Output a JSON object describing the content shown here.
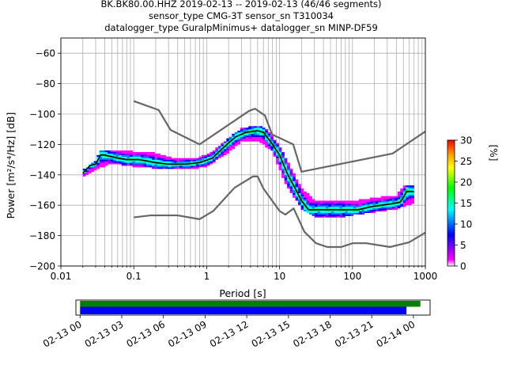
{
  "title": {
    "line1": "BK.BK80.00.HHZ   2019-02-13 -- 2019-02-13  (46/46 segments)",
    "line2": "sensor_type CMG-3T sensor_sn T310034",
    "line3": "datalogger_type GuralpMinimus+ datalogger_sn MINP-DF59"
  },
  "colorbar": {
    "label": "[%]",
    "min": 0,
    "max": 30,
    "ticks": [
      "0",
      "5",
      "10",
      "15",
      "20",
      "25",
      "30"
    ],
    "colors": [
      "#ffffff",
      "#ff00ff",
      "#0000ff",
      "#00ffff",
      "#00ff00",
      "#ffff00",
      "#ffa500",
      "#ff0000"
    ]
  },
  "chart_data": {
    "type": "heatmap",
    "title": "BK.BK80.00.HHZ   2019-02-13 -- 2019-02-13  (46/46 segments)",
    "xlabel": "Period [s]",
    "ylabel": "Power [m²/s⁴/Hz] [dB]",
    "xscale": "log",
    "xlim": [
      0.01,
      1000
    ],
    "ylim": [
      -200,
      -50
    ],
    "grid": true,
    "x_tick_labels": [
      "0.01",
      "0.1",
      "1",
      "10",
      "100",
      "1000"
    ],
    "y_tick_labels": [
      "−200",
      "−180",
      "−160",
      "−140",
      "−120",
      "−100",
      "−80",
      "−60"
    ],
    "y_ticks": [
      -200,
      -180,
      -160,
      -140,
      -120,
      -100,
      -80,
      -60
    ],
    "series": [
      {
        "name": "NHNM",
        "color": "#666666",
        "points": [
          [
            0.1,
            -91.5
          ],
          [
            0.22,
            -97.4
          ],
          [
            0.32,
            -110.5
          ],
          [
            0.8,
            -120
          ],
          [
            3.8,
            -98
          ],
          [
            4.6,
            -96.5
          ],
          [
            6.3,
            -101
          ],
          [
            7.9,
            -113.5
          ],
          [
            15.4,
            -120
          ],
          [
            20,
            -138
          ],
          [
            354.8,
            -126
          ],
          [
            1000,
            -111.5
          ]
        ]
      },
      {
        "name": "NLNM",
        "color": "#666666",
        "points": [
          [
            0.1,
            -168
          ],
          [
            0.17,
            -166.7
          ],
          [
            0.4,
            -166.7
          ],
          [
            0.8,
            -169.2
          ],
          [
            1.24,
            -163.7
          ],
          [
            2.4,
            -148.6
          ],
          [
            4.3,
            -141.1
          ],
          [
            5,
            -141.1
          ],
          [
            6,
            -149
          ],
          [
            10,
            -163.8
          ],
          [
            12,
            -166.2
          ],
          [
            15.6,
            -162.1
          ],
          [
            21.9,
            -177.5
          ],
          [
            31.6,
            -185
          ],
          [
            45,
            -187.5
          ],
          [
            70,
            -187.5
          ],
          [
            101,
            -185
          ],
          [
            154,
            -185
          ],
          [
            328,
            -187.5
          ],
          [
            600,
            -184.4
          ],
          [
            1000,
            -178
          ]
        ]
      },
      {
        "name": "mode",
        "color": "#000000",
        "points": [
          [
            0.02,
            -139
          ],
          [
            0.025,
            -134
          ],
          [
            0.03,
            -133
          ],
          [
            0.035,
            -127
          ],
          [
            0.04,
            -127
          ],
          [
            0.06,
            -129
          ],
          [
            0.08,
            -130
          ],
          [
            0.12,
            -130
          ],
          [
            0.2,
            -132
          ],
          [
            0.3,
            -133
          ],
          [
            0.5,
            -133
          ],
          [
            0.8,
            -132
          ],
          [
            1.2,
            -129
          ],
          [
            1.8,
            -121
          ],
          [
            2.5,
            -115
          ],
          [
            3.5,
            -112
          ],
          [
            5,
            -111
          ],
          [
            6,
            -112
          ],
          [
            8,
            -120
          ],
          [
            10,
            -127
          ],
          [
            13,
            -140
          ],
          [
            16,
            -148
          ],
          [
            20,
            -157
          ],
          [
            25,
            -163
          ],
          [
            30,
            -163
          ],
          [
            50,
            -163
          ],
          [
            80,
            -163
          ],
          [
            120,
            -163
          ],
          [
            180,
            -161
          ],
          [
            250,
            -160
          ],
          [
            350,
            -159
          ],
          [
            450,
            -158
          ],
          [
            500,
            -155
          ],
          [
            550,
            -151
          ],
          [
            700,
            -151
          ]
        ]
      }
    ],
    "bands": [
      {
        "name": "lower-spread",
        "points": [
          [
            0.02,
            -141
          ],
          [
            0.03,
            -136
          ],
          [
            0.05,
            -132
          ],
          [
            0.1,
            -134
          ],
          [
            0.3,
            -136
          ],
          [
            0.6,
            -136
          ],
          [
            1,
            -134
          ],
          [
            2,
            -125
          ],
          [
            3,
            -118
          ],
          [
            5,
            -117
          ],
          [
            8,
            -124
          ],
          [
            12,
            -145
          ],
          [
            20,
            -162
          ],
          [
            30,
            -167
          ],
          [
            60,
            -168
          ],
          [
            100,
            -166
          ],
          [
            200,
            -164
          ],
          [
            400,
            -162
          ],
          [
            550,
            -160
          ],
          [
            700,
            -158
          ]
        ]
      },
      {
        "name": "upper-spread",
        "points": [
          [
            0.02,
            -137
          ],
          [
            0.03,
            -131
          ],
          [
            0.035,
            -124
          ],
          [
            0.06,
            -124
          ],
          [
            0.1,
            -125
          ],
          [
            0.2,
            -126
          ],
          [
            0.4,
            -130
          ],
          [
            0.8,
            -129
          ],
          [
            1.2,
            -125
          ],
          [
            2,
            -116
          ],
          [
            3,
            -110
          ],
          [
            5,
            -108
          ],
          [
            6,
            -109
          ],
          [
            8,
            -115
          ],
          [
            11,
            -125
          ],
          [
            15,
            -138
          ],
          [
            20,
            -149
          ],
          [
            30,
            -157
          ],
          [
            60,
            -157
          ],
          [
            120,
            -157
          ],
          [
            250,
            -155
          ],
          [
            400,
            -154
          ],
          [
            500,
            -148
          ],
          [
            700,
            -147
          ]
        ]
      }
    ],
    "timeline": {
      "tick_labels": [
        "02-13 00",
        "02-13 03",
        "02-13 06",
        "02-13 09",
        "02-13 12",
        "02-13 15",
        "02-13 18",
        "02-13 21",
        "02-14 00"
      ],
      "range_hours": [
        -0.3,
        25.2
      ],
      "segments": [
        {
          "name": "data-coverage",
          "color": "#008000",
          "start_hour": 0,
          "end_hour": 24.5
        },
        {
          "name": "used-segments",
          "color": "#0000ff",
          "start_hour": 0,
          "end_hour": 23.5
        }
      ]
    }
  }
}
